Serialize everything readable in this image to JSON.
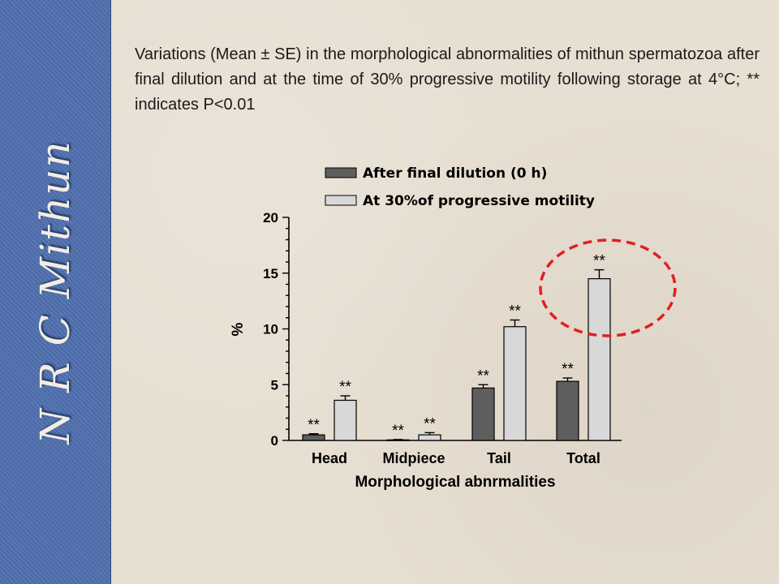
{
  "sidebar": {
    "label": "N R C Mithun"
  },
  "caption": "Variations (Mean ± SE) in the morphological abnormalities of mithun spermatozoa after final dilution and at the time of 30% progressive motility following storage at 4°C; ** indicates P<0.01",
  "colors": {
    "series_dark": "#5e5e5e",
    "series_light": "#d8d8d8",
    "highlight": "#e02020"
  },
  "chart_data": {
    "type": "bar",
    "categories": [
      "Head",
      "Midpiece",
      "Tail",
      "Total"
    ],
    "series": [
      {
        "name": "After final dilution (0 h)",
        "values": [
          0.5,
          0.05,
          4.7,
          5.3
        ],
        "errors": [
          0.1,
          0.03,
          0.3,
          0.3
        ],
        "significance": [
          "**",
          "**",
          "**",
          "**"
        ]
      },
      {
        "name": "At 30%of progressive motility",
        "values": [
          3.6,
          0.5,
          10.2,
          14.5
        ],
        "errors": [
          0.4,
          0.2,
          0.6,
          0.8
        ],
        "significance": [
          "**",
          "**",
          "**",
          "**"
        ]
      }
    ],
    "xlabel": "Morphological abnrmalities",
    "ylabel": "%",
    "ylim": [
      0,
      20
    ],
    "yticks": [
      "0",
      "5",
      "10",
      "15",
      "20"
    ],
    "legend_position": "top",
    "annotation": "dashed red circle around Total bars",
    "grid": false
  }
}
